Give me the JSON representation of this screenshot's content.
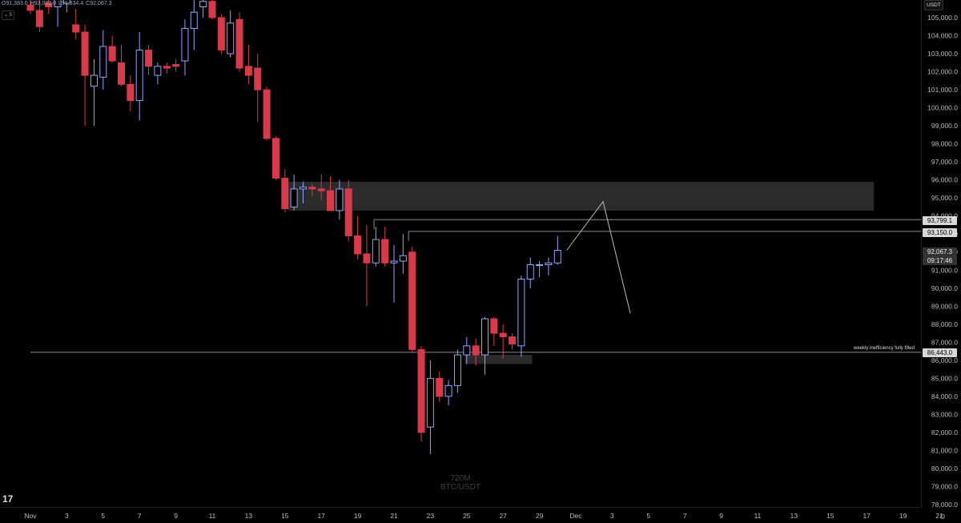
{
  "header": {
    "open": "O91,383.0",
    "high": "H93,080.0",
    "low": "L91,334.4",
    "close": "C92,067.3",
    "interval_button": "5"
  },
  "currency_label": "USDT",
  "watermark": {
    "line1": "720M",
    "line2": "BTC/USDT"
  },
  "annotation": "weekly inefficiency fully filled",
  "price_tags": {
    "level_1": "93,799.1",
    "level_2": "93,150.0",
    "current": "92,067.3",
    "countdown": "09:17:46",
    "level_3": "86,443.0"
  },
  "colors": {
    "bull_outline": "#8ea5ff",
    "bear_fill": "#d83a4a",
    "zone": "#2b2b2b",
    "line": "#8a8a8a"
  },
  "chart_data": {
    "type": "candlestick",
    "symbol": "BTC/USDT",
    "ylim": [
      77800,
      105800
    ],
    "y_ticks": [
      78000,
      79000,
      80000,
      81000,
      82000,
      83000,
      84000,
      85000,
      86000,
      87000,
      88000,
      89000,
      90000,
      91000,
      92000,
      93000,
      94000,
      95000,
      96000,
      97000,
      98000,
      99000,
      100000,
      101000,
      102000,
      103000,
      104000,
      105000
    ],
    "x_ticks": [
      {
        "label": "Nov",
        "day": 0
      },
      {
        "label": "3",
        "day": 2
      },
      {
        "label": "5",
        "day": 4
      },
      {
        "label": "7",
        "day": 6
      },
      {
        "label": "9",
        "day": 8
      },
      {
        "label": "11",
        "day": 10
      },
      {
        "label": "13",
        "day": 12
      },
      {
        "label": "15",
        "day": 14
      },
      {
        "label": "17",
        "day": 16
      },
      {
        "label": "19",
        "day": 18
      },
      {
        "label": "21",
        "day": 20
      },
      {
        "label": "23",
        "day": 22
      },
      {
        "label": "25",
        "day": 24
      },
      {
        "label": "27",
        "day": 26
      },
      {
        "label": "29",
        "day": 28
      },
      {
        "label": "Dec",
        "day": 30
      },
      {
        "label": "3",
        "day": 32
      },
      {
        "label": "5",
        "day": 34
      },
      {
        "label": "7",
        "day": 36
      },
      {
        "label": "9",
        "day": 38
      },
      {
        "label": "11",
        "day": 40
      },
      {
        "label": "13",
        "day": 42
      },
      {
        "label": "15",
        "day": 44
      },
      {
        "label": "17",
        "day": 46
      },
      {
        "label": "19",
        "day": 48
      },
      {
        "label": "21",
        "day": 50
      }
    ],
    "candles": [
      {
        "t": 0,
        "o": 105700,
        "h": 106500,
        "l": 105200,
        "c": 105400
      },
      {
        "t": 0.5,
        "o": 105400,
        "h": 106300,
        "l": 104200,
        "c": 104500
      },
      {
        "t": 1,
        "o": 105800,
        "h": 106400,
        "l": 105200,
        "c": 105600
      },
      {
        "t": 1.5,
        "o": 105600,
        "h": 106800,
        "l": 104500,
        "c": 106000
      },
      {
        "t": 2,
        "o": 105800,
        "h": 106500,
        "l": 105300,
        "c": 106200
      },
      {
        "t": 2.5,
        "o": 104600,
        "h": 105500,
        "l": 103800,
        "c": 104200
      },
      {
        "t": 3,
        "o": 104200,
        "h": 104600,
        "l": 99000,
        "c": 101800
      },
      {
        "t": 3.5,
        "o": 101200,
        "h": 102700,
        "l": 99000,
        "c": 101800
      },
      {
        "t": 4,
        "o": 101700,
        "h": 104300,
        "l": 101000,
        "c": 103400
      },
      {
        "t": 4.5,
        "o": 103400,
        "h": 104000,
        "l": 102500,
        "c": 102600
      },
      {
        "t": 5,
        "o": 102500,
        "h": 103500,
        "l": 101200,
        "c": 101300
      },
      {
        "t": 5.5,
        "o": 101300,
        "h": 101800,
        "l": 99800,
        "c": 100400
      },
      {
        "t": 6,
        "o": 100400,
        "h": 104200,
        "l": 99300,
        "c": 103200
      },
      {
        "t": 6.5,
        "o": 103200,
        "h": 103500,
        "l": 101800,
        "c": 102300
      },
      {
        "t": 7,
        "o": 101800,
        "h": 102500,
        "l": 101300,
        "c": 102300
      },
      {
        "t": 7.5,
        "o": 102300,
        "h": 102500,
        "l": 101900,
        "c": 102200
      },
      {
        "t": 8,
        "o": 102400,
        "h": 102700,
        "l": 102000,
        "c": 102300
      },
      {
        "t": 8.5,
        "o": 102600,
        "h": 104900,
        "l": 101800,
        "c": 104400
      },
      {
        "t": 9,
        "o": 104400,
        "h": 106000,
        "l": 103200,
        "c": 105300
      },
      {
        "t": 9.5,
        "o": 105600,
        "h": 106400,
        "l": 105000,
        "c": 105900
      },
      {
        "t": 10,
        "o": 105900,
        "h": 106100,
        "l": 104900,
        "c": 105000
      },
      {
        "t": 10.5,
        "o": 105000,
        "h": 105200,
        "l": 103000,
        "c": 103200
      },
      {
        "t": 11,
        "o": 103000,
        "h": 105400,
        "l": 102800,
        "c": 104700
      },
      {
        "t": 11.5,
        "o": 104900,
        "h": 105300,
        "l": 102000,
        "c": 102200
      },
      {
        "t": 12,
        "o": 102300,
        "h": 103500,
        "l": 101300,
        "c": 101800
      },
      {
        "t": 12.5,
        "o": 102200,
        "h": 103000,
        "l": 99200,
        "c": 101000
      },
      {
        "t": 13,
        "o": 101000,
        "h": 101200,
        "l": 98200,
        "c": 98300
      },
      {
        "t": 13.5,
        "o": 98300,
        "h": 98400,
        "l": 96000,
        "c": 96100
      },
      {
        "t": 14,
        "o": 96100,
        "h": 96600,
        "l": 94200,
        "c": 94400
      },
      {
        "t": 14.5,
        "o": 94500,
        "h": 96300,
        "l": 94300,
        "c": 95500
      },
      {
        "t": 15,
        "o": 95500,
        "h": 95900,
        "l": 94700,
        "c": 95600
      },
      {
        "t": 15.5,
        "o": 95600,
        "h": 95800,
        "l": 95100,
        "c": 95500
      },
      {
        "t": 16,
        "o": 95500,
        "h": 96300,
        "l": 94900,
        "c": 95400
      },
      {
        "t": 16.5,
        "o": 95400,
        "h": 96200,
        "l": 94400,
        "c": 94300
      },
      {
        "t": 17,
        "o": 94300,
        "h": 96000,
        "l": 93800,
        "c": 95500
      },
      {
        "t": 17.5,
        "o": 95500,
        "h": 96000,
        "l": 92600,
        "c": 92900
      },
      {
        "t": 18,
        "o": 92900,
        "h": 94000,
        "l": 91600,
        "c": 91900
      },
      {
        "t": 18.5,
        "o": 91900,
        "h": 93500,
        "l": 89000,
        "c": 91400
      },
      {
        "t": 19,
        "o": 91400,
        "h": 93400,
        "l": 91200,
        "c": 92700
      },
      {
        "t": 19.5,
        "o": 92700,
        "h": 93400,
        "l": 91200,
        "c": 91400
      },
      {
        "t": 20,
        "o": 91400,
        "h": 92400,
        "l": 89200,
        "c": 91500
      },
      {
        "t": 20.5,
        "o": 91500,
        "h": 93000,
        "l": 90800,
        "c": 91800
      },
      {
        "t": 21,
        "o": 92000,
        "h": 92300,
        "l": 86400,
        "c": 86600
      },
      {
        "t": 21.5,
        "o": 86600,
        "h": 86800,
        "l": 81500,
        "c": 82000
      },
      {
        "t": 22,
        "o": 82300,
        "h": 86000,
        "l": 80800,
        "c": 85000
      },
      {
        "t": 22.5,
        "o": 85000,
        "h": 85400,
        "l": 83700,
        "c": 84000
      },
      {
        "t": 23,
        "o": 84000,
        "h": 84900,
        "l": 83500,
        "c": 84600
      },
      {
        "t": 23.5,
        "o": 84600,
        "h": 86600,
        "l": 84200,
        "c": 86300
      },
      {
        "t": 24,
        "o": 86300,
        "h": 87300,
        "l": 85800,
        "c": 86800
      },
      {
        "t": 24.5,
        "o": 86800,
        "h": 87200,
        "l": 85700,
        "c": 86300
      },
      {
        "t": 25,
        "o": 86300,
        "h": 88400,
        "l": 85200,
        "c": 88300
      },
      {
        "t": 25.5,
        "o": 88300,
        "h": 88400,
        "l": 86800,
        "c": 87500
      },
      {
        "t": 26,
        "o": 87500,
        "h": 88000,
        "l": 86100,
        "c": 87300
      },
      {
        "t": 26.5,
        "o": 87300,
        "h": 87500,
        "l": 86600,
        "c": 86900
      },
      {
        "t": 27,
        "o": 86800,
        "h": 90700,
        "l": 86200,
        "c": 90500
      },
      {
        "t": 27.5,
        "o": 90500,
        "h": 91700,
        "l": 90000,
        "c": 91300
      },
      {
        "t": 28,
        "o": 91300,
        "h": 91500,
        "l": 90600,
        "c": 91300
      },
      {
        "t": 28.5,
        "o": 91300,
        "h": 91700,
        "l": 90700,
        "c": 91400
      },
      {
        "t": 29,
        "o": 91400,
        "h": 92900,
        "l": 91300,
        "c": 92100
      }
    ],
    "zones": [
      {
        "from_day": 14.2,
        "to_day": 46.4,
        "top": 95900,
        "bottom": 94300
      },
      {
        "from_day": 23.9,
        "to_day": 27.6,
        "top": 86300,
        "bottom": 85800
      }
    ],
    "horizontal_lines": [
      {
        "price": 93799.1,
        "from_day": 18.9,
        "label_ref": "level_1"
      },
      {
        "price": 93150.0,
        "from_day": 20.8,
        "label_ref": "level_2"
      },
      {
        "price": 86443.0,
        "from_day": 0,
        "label_ref": "level_3"
      }
    ],
    "projection": [
      {
        "day": 29.5,
        "price": 92100
      },
      {
        "day": 31.5,
        "price": 94800
      },
      {
        "day": 33.0,
        "price": 88600
      }
    ]
  }
}
